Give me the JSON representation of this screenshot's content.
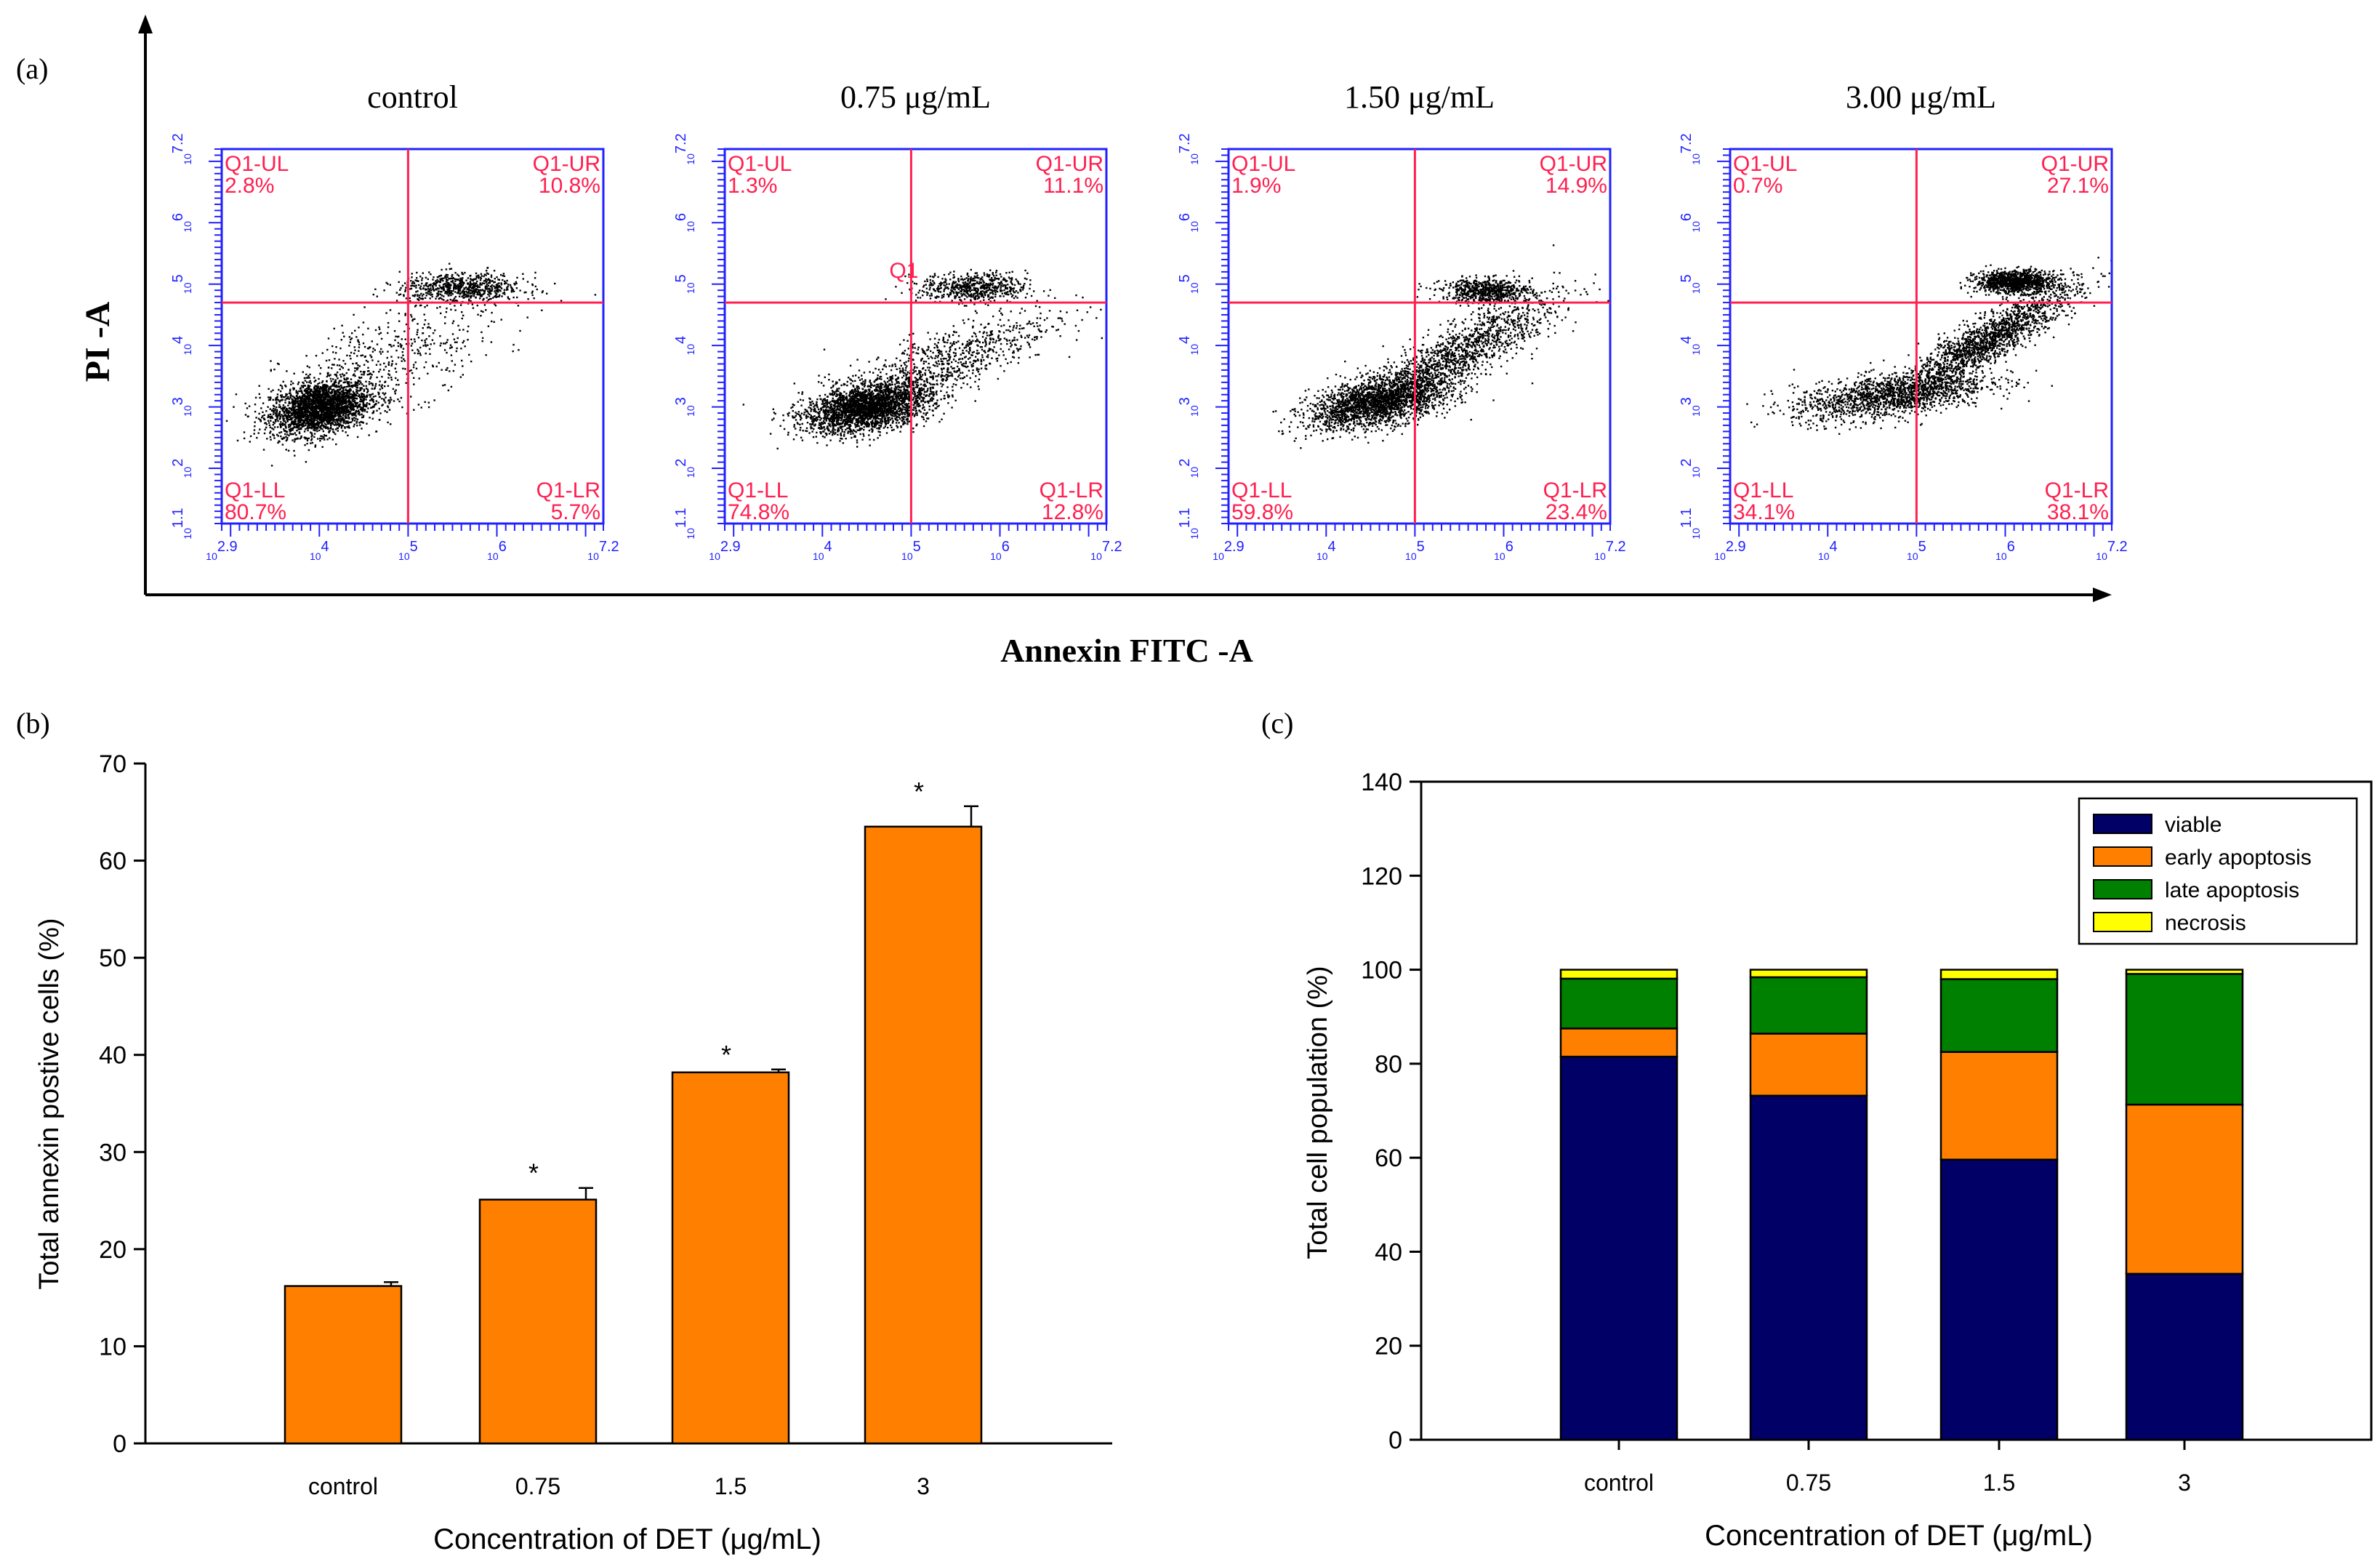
{
  "figure": {
    "panel_labels": {
      "a": "(a)",
      "b": "(b)",
      "c": "(c)"
    }
  },
  "chart_data": [
    {
      "id": "a",
      "type": "scatter",
      "title": "",
      "xlabel": "Annexin FITC -A",
      "ylabel": "PI -A",
      "x_ticks": [
        "10^2.9",
        "10^4",
        "10^5",
        "10^6",
        "10^7.2"
      ],
      "y_ticks": [
        "10^1.1",
        "10^2",
        "10^3",
        "10^4",
        "10^5",
        "10^6",
        "10^7.2"
      ],
      "xlim": [
        2.9,
        7.2
      ],
      "ylim": [
        1.1,
        7.2
      ],
      "gate": {
        "x": 5.0,
        "y": 4.7
      },
      "panels": [
        {
          "title": "control",
          "UL": "2.8%",
          "UR": "10.8%",
          "LL": "80.7%",
          "LR": "5.7%",
          "extra_label": ""
        },
        {
          "title": "0.75 μg/mL",
          "UL": "1.3%",
          "UR": "11.1%",
          "LL": "74.8%",
          "LR": "12.8%",
          "extra_label": "Q1"
        },
        {
          "title": "1.50 μg/mL",
          "UL": "1.9%",
          "UR": "14.9%",
          "LL": "59.8%",
          "LR": "23.4%",
          "extra_label": ""
        },
        {
          "title": "3.00 μg/mL",
          "UL": "0.7%",
          "UR": "27.1%",
          "LL": "34.1%",
          "LR": "38.1%",
          "extra_label": ""
        }
      ],
      "quadrant_names": {
        "UL": "Q1-UL",
        "UR": "Q1-UR",
        "LL": "Q1-LL",
        "LR": "Q1-LR"
      }
    },
    {
      "id": "b",
      "type": "bar",
      "title": "",
      "xlabel": "Concentration of DET (μg/mL)",
      "ylabel": "Total annexin postive cells (%)",
      "categories": [
        "control",
        "0.75",
        "1.5",
        "3"
      ],
      "values": [
        16.2,
        25.1,
        38.2,
        63.5
      ],
      "errors": [
        0.4,
        1.2,
        0.3,
        2.1
      ],
      "significance": [
        "",
        "*",
        "*",
        "*"
      ],
      "ylim": [
        0,
        70
      ],
      "yticks": [
        0,
        10,
        20,
        30,
        40,
        50,
        60,
        70
      ],
      "color": "#ff8000"
    },
    {
      "id": "c",
      "type": "bar",
      "stacked": true,
      "title": "",
      "xlabel": "Concentration of DET (μg/mL)",
      "ylabel": "Total cell population (%)",
      "categories": [
        "control",
        "0.75",
        "1.5",
        "3"
      ],
      "ylim": [
        0,
        140
      ],
      "yticks": [
        0,
        20,
        40,
        60,
        80,
        100,
        120,
        140
      ],
      "legend_position": "top-right",
      "series": [
        {
          "name": "viable",
          "color": "#000066",
          "values": [
            81.5,
            73.2,
            59.6,
            35.3
          ]
        },
        {
          "name": "early apoptosis",
          "color": "#ff8000",
          "values": [
            6.0,
            13.2,
            22.9,
            36.0
          ]
        },
        {
          "name": "late apoptosis",
          "color": "#008000",
          "values": [
            10.6,
            12.0,
            15.5,
            27.8
          ]
        },
        {
          "name": "necrosis",
          "color": "#ffff00",
          "values": [
            1.9,
            1.6,
            2.0,
            0.9
          ]
        }
      ]
    }
  ]
}
